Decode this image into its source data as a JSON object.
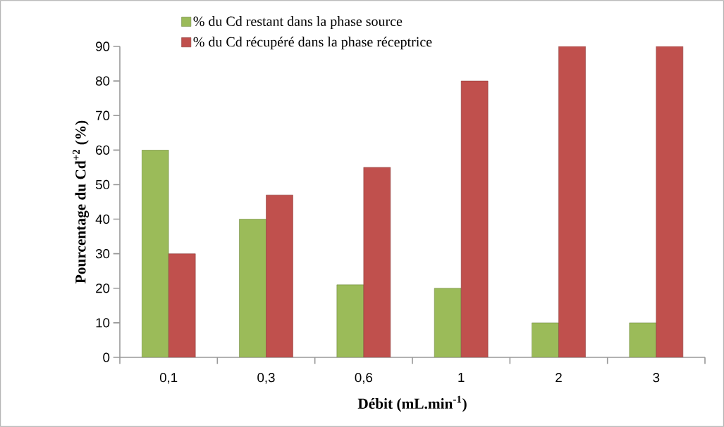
{
  "chart_data": {
    "type": "bar",
    "xlabel": "**Débit (mL.min$^{-1}$)**",
    "ylabel": "**Pourcentage du Cd$^{+2}$ (%)**",
    "categories": [
      "0,1",
      "0,3",
      "0,6",
      "1",
      "2",
      "3"
    ],
    "series": [
      {
        "name": "% du Cd restant dans la phase source",
        "color": "#9bbb59",
        "values": [
          60,
          40,
          21,
          20,
          10,
          10
        ]
      },
      {
        "name": "% du Cd récupéré dans la phase réceptrice",
        "color": "#c0504d",
        "values": [
          30,
          47,
          55,
          80,
          90,
          90
        ]
      }
    ],
    "ylim": [
      0,
      90
    ],
    "yticks": [
      0,
      10,
      20,
      30,
      40,
      50,
      60,
      70,
      80,
      90
    ],
    "grid": false,
    "legend": "top"
  }
}
